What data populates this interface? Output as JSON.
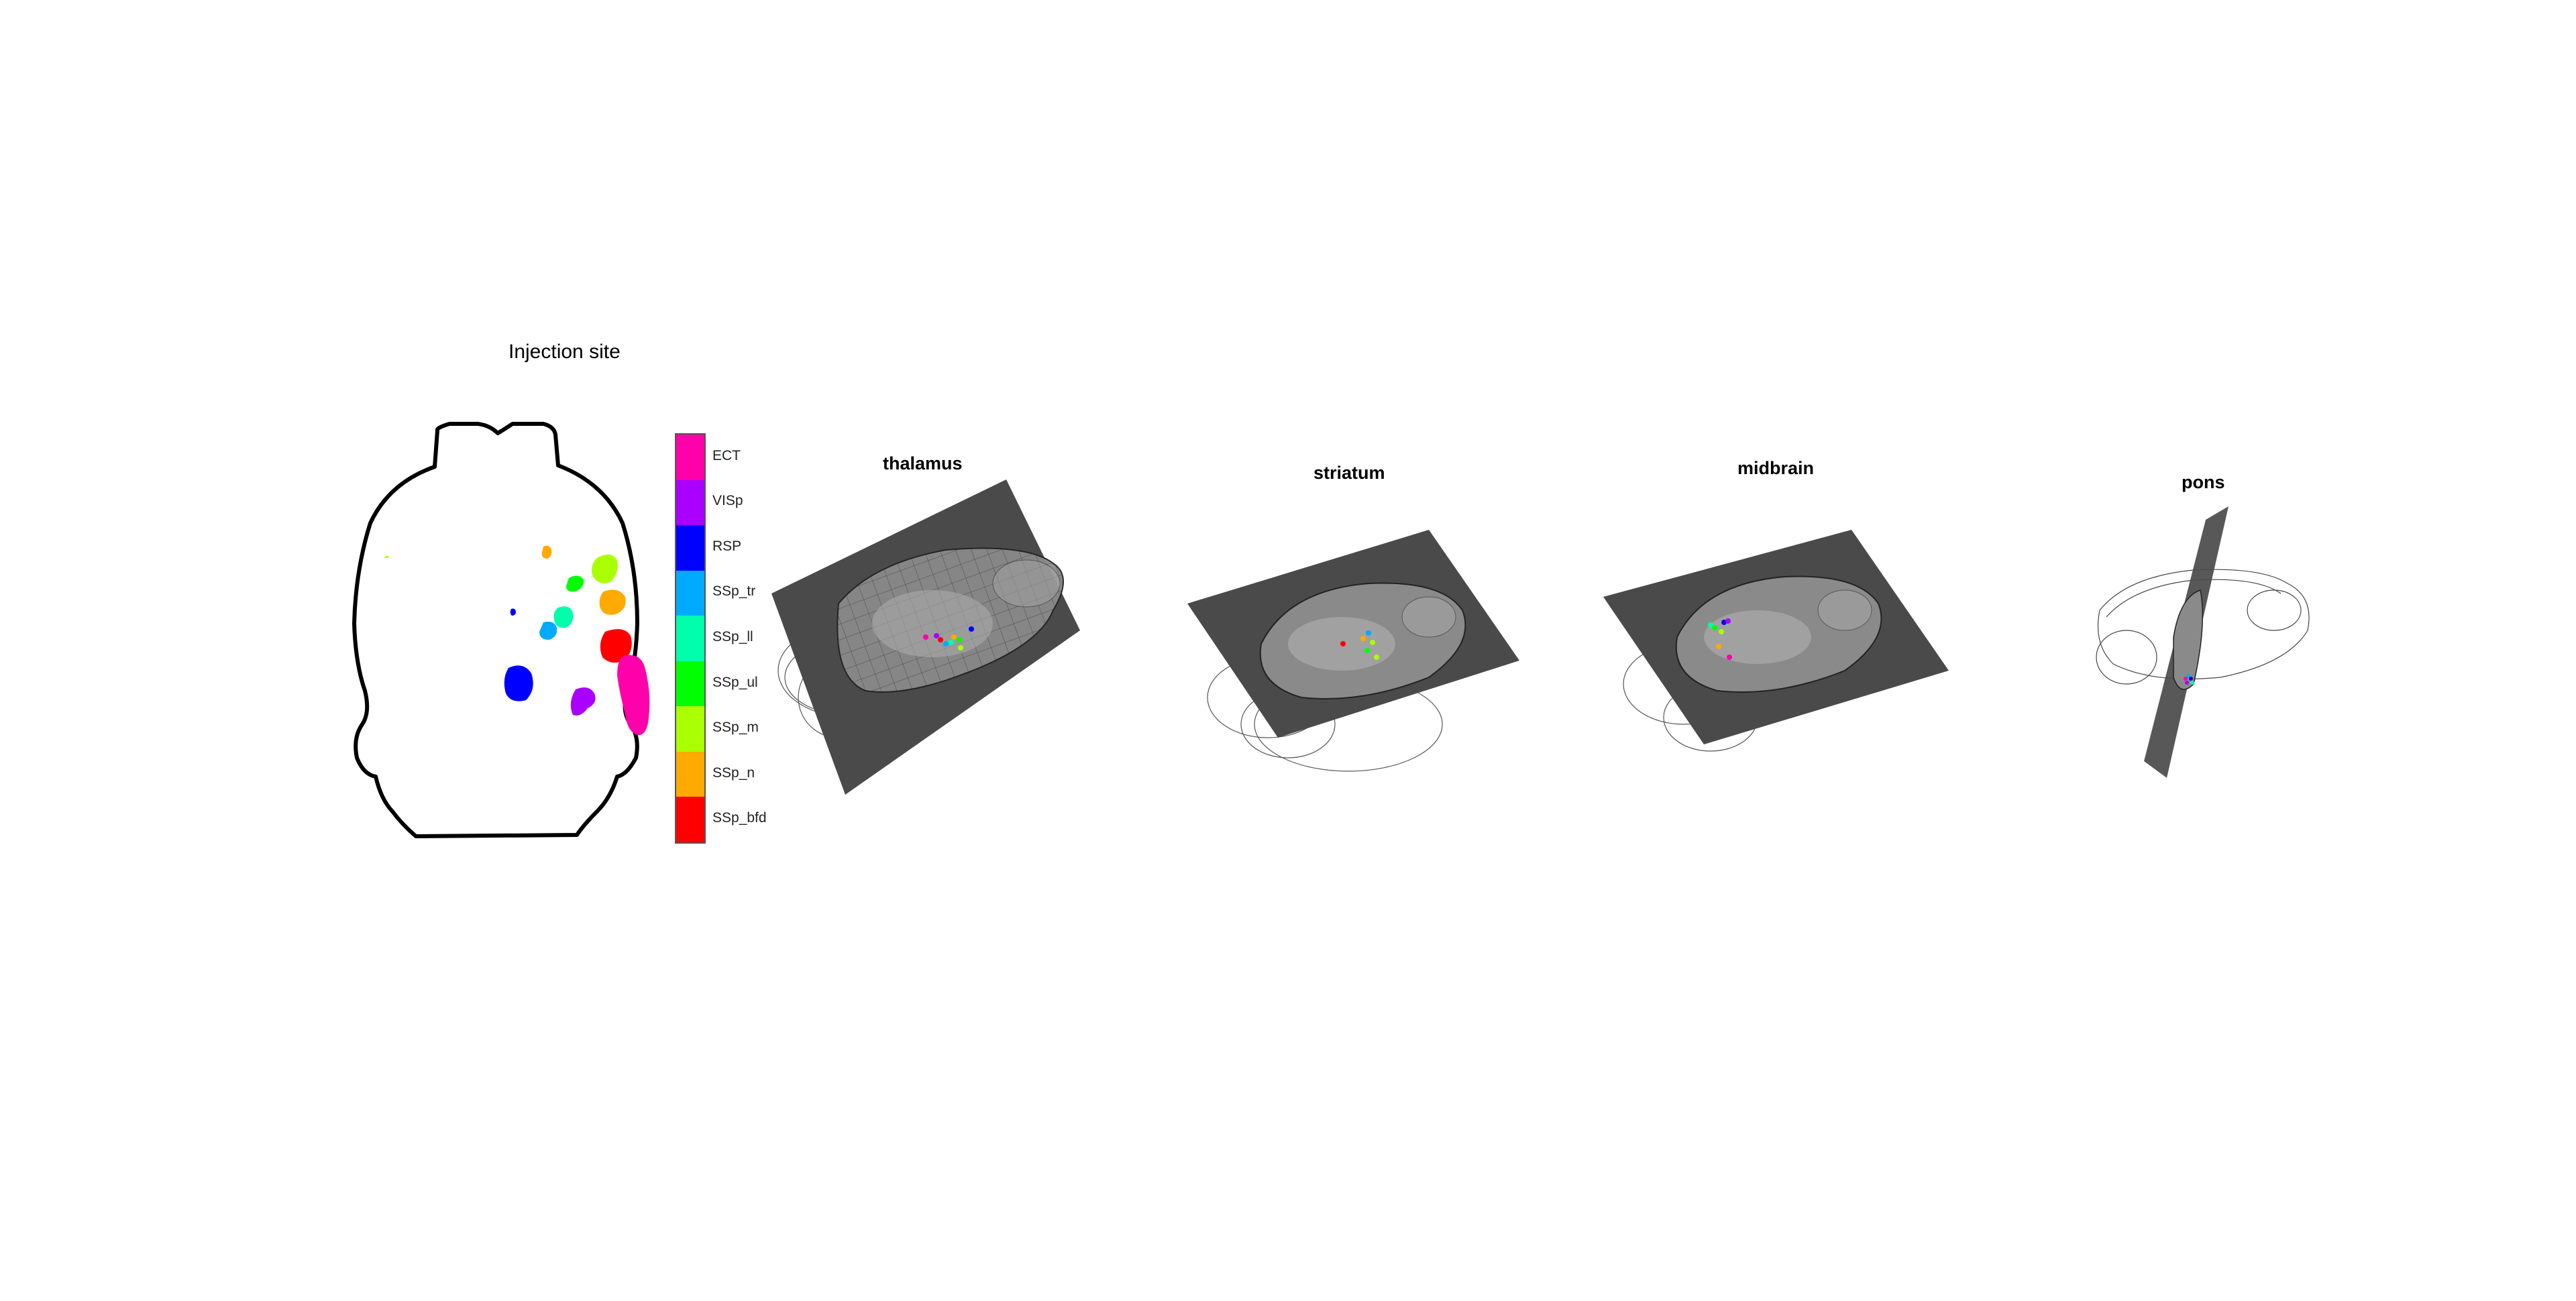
{
  "figure": {
    "injection_title": "Injection site",
    "legend": [
      {
        "label": "ECT",
        "color": "#ff00aa"
      },
      {
        "label": "VISp",
        "color": "#aa00ff"
      },
      {
        "label": "RSP",
        "color": "#0000ff"
      },
      {
        "label": "SSp_tr",
        "color": "#00aaff"
      },
      {
        "label": "SSp_ll",
        "color": "#00ffaa"
      },
      {
        "label": "SSp_ul",
        "color": "#00ff00"
      },
      {
        "label": "SSp_m",
        "color": "#aaff00"
      },
      {
        "label": "SSp_n",
        "color": "#ffaa00"
      },
      {
        "label": "SSp_bfd",
        "color": "#ff0000"
      }
    ],
    "panels": [
      {
        "title": "thalamus"
      },
      {
        "title": "striatum"
      },
      {
        "title": "midbrain"
      },
      {
        "title": "pons"
      }
    ],
    "colors": {
      "plane": "#4a4a4a",
      "outline": "#000000"
    }
  }
}
